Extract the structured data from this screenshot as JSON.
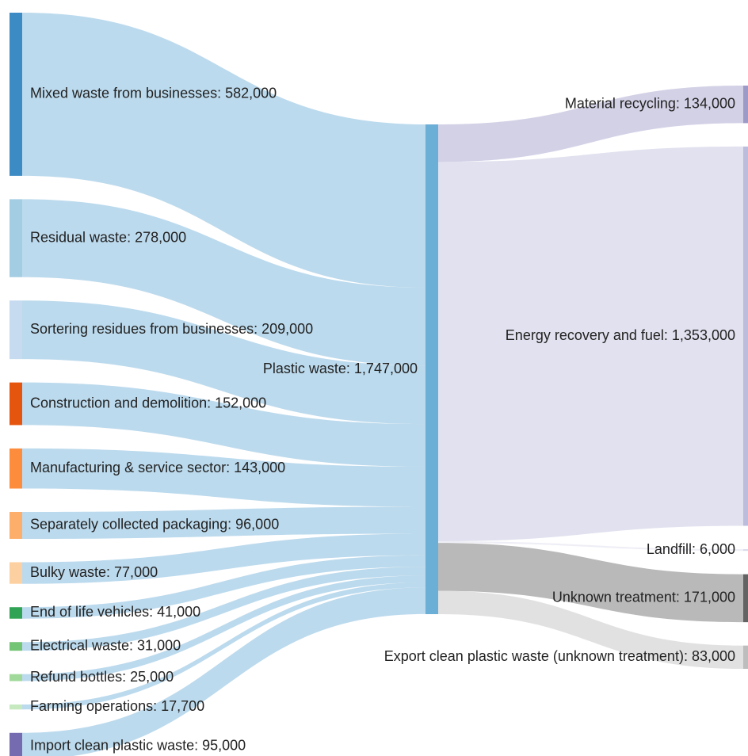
{
  "chart_data": {
    "type": "sankey",
    "nodes": [
      {
        "label": "Mixed waste from businesses: 582,000",
        "value": 582000,
        "color": "#3d8bc4"
      },
      {
        "label": "Residual waste: 278,000",
        "value": 278000,
        "color": "#a3cde3"
      },
      {
        "label": "Sortering residues from businesses: 209,000",
        "value": 209000,
        "color": "#c6dbef"
      },
      {
        "label": "Construction and demolition: 152,000",
        "value": 152000,
        "color": "#e6550d"
      },
      {
        "label": "Manufacturing & service sector: 143,000",
        "value": 143000,
        "color": "#fd8d3c"
      },
      {
        "label": "Separately collected packaging: 96,000",
        "value": 96000,
        "color": "#fdae6b"
      },
      {
        "label": "Bulky waste: 77,000",
        "value": 77000,
        "color": "#fdd0a2"
      },
      {
        "label": "End of life vehicles: 41,000",
        "value": 41000,
        "color": "#31a354"
      },
      {
        "label": "Electrical waste: 31,000",
        "value": 31000,
        "color": "#74c476"
      },
      {
        "label": "Refund bottles: 25,000",
        "value": 25000,
        "color": "#a1d99b"
      },
      {
        "label": "Farming operations: 17,700",
        "value": 17700,
        "color": "#c7e9c0"
      },
      {
        "label": "Import clean plastic waste: 95,000",
        "value": 95000,
        "color": "#756bb1"
      },
      {
        "label": "Plastic waste: 1,747,000",
        "value": 1747000,
        "color": "#6baed6"
      },
      {
        "label": "Material recycling: 134,000",
        "value": 134000,
        "color": "#9e9ac8"
      },
      {
        "label": "Energy recovery and fuel: 1,353,000",
        "value": 1353000,
        "color": "#bcbddc"
      },
      {
        "label": "Landfill: 6,000",
        "value": 6000,
        "color": "#dadaeb"
      },
      {
        "label": "Unknown treatment: 171,000",
        "value": 171000,
        "color": "#636363"
      },
      {
        "label": "Export clean plastic waste (unknown treatment): 83,000",
        "value": 83000,
        "color": "#bdbdbd"
      }
    ],
    "links": [
      {
        "source": 0,
        "target": 12,
        "value": 582000
      },
      {
        "source": 1,
        "target": 12,
        "value": 278000
      },
      {
        "source": 2,
        "target": 12,
        "value": 209000
      },
      {
        "source": 3,
        "target": 12,
        "value": 152000
      },
      {
        "source": 4,
        "target": 12,
        "value": 143000
      },
      {
        "source": 5,
        "target": 12,
        "value": 96000
      },
      {
        "source": 6,
        "target": 12,
        "value": 77000
      },
      {
        "source": 7,
        "target": 12,
        "value": 41000
      },
      {
        "source": 8,
        "target": 12,
        "value": 31000
      },
      {
        "source": 9,
        "target": 12,
        "value": 25000
      },
      {
        "source": 10,
        "target": 12,
        "value": 17700
      },
      {
        "source": 11,
        "target": 12,
        "value": 95000
      },
      {
        "source": 12,
        "target": 13,
        "value": 134000
      },
      {
        "source": 12,
        "target": 14,
        "value": 1353000
      },
      {
        "source": 12,
        "target": 15,
        "value": 6000
      },
      {
        "source": 12,
        "target": 16,
        "value": 171000
      },
      {
        "source": 12,
        "target": 17,
        "value": 83000
      }
    ]
  }
}
